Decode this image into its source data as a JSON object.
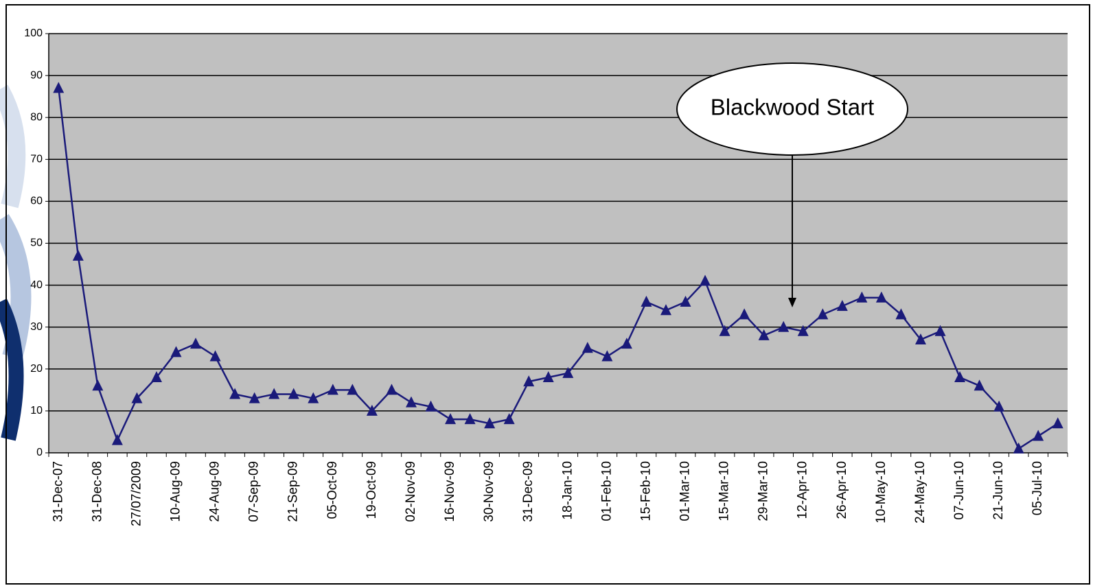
{
  "chart_data": {
    "type": "line",
    "title": "",
    "xlabel": "",
    "ylabel": "",
    "ylim": [
      0,
      100
    ],
    "yticks": [
      "0",
      "10",
      "20",
      "30",
      "40",
      "50",
      "60",
      "70",
      "80",
      "90",
      "100"
    ],
    "grid": true,
    "x_tick_labels": [
      "31-Dec-07",
      "31-Dec-08",
      "27/07/2009",
      "10-Aug-09",
      "24-Aug-09",
      "07-Sep-09",
      "21-Sep-09",
      "05-Oct-09",
      "19-Oct-09",
      "02-Nov-09",
      "16-Nov-09",
      "30-Nov-09",
      "31-Dec-09",
      "18-Jan-10",
      "01-Feb-10",
      "15-Feb-10",
      "01-Mar-10",
      "15-Mar-10",
      "29-Mar-10",
      "12-Apr-10",
      "26-Apr-10",
      "10-May-10",
      "24-May-10",
      "07-Jun-10",
      "21-Jun-10",
      "05-Jul-10"
    ],
    "series": [
      {
        "values": [
          87,
          47,
          16,
          3,
          13,
          18,
          24,
          26,
          23,
          14,
          13,
          14,
          14,
          13,
          15,
          15,
          10,
          15,
          12,
          11,
          8,
          8,
          7,
          8,
          17,
          18,
          19,
          25,
          23,
          26,
          36,
          34,
          36,
          41,
          29,
          33,
          28,
          30,
          29,
          33,
          35,
          37,
          37,
          33,
          27,
          29,
          18,
          16,
          11,
          1,
          4,
          7
        ],
        "color": "#1a1a7a",
        "marker": "triangle"
      }
    ],
    "annotation": {
      "text": "Blackwood Start"
    }
  }
}
